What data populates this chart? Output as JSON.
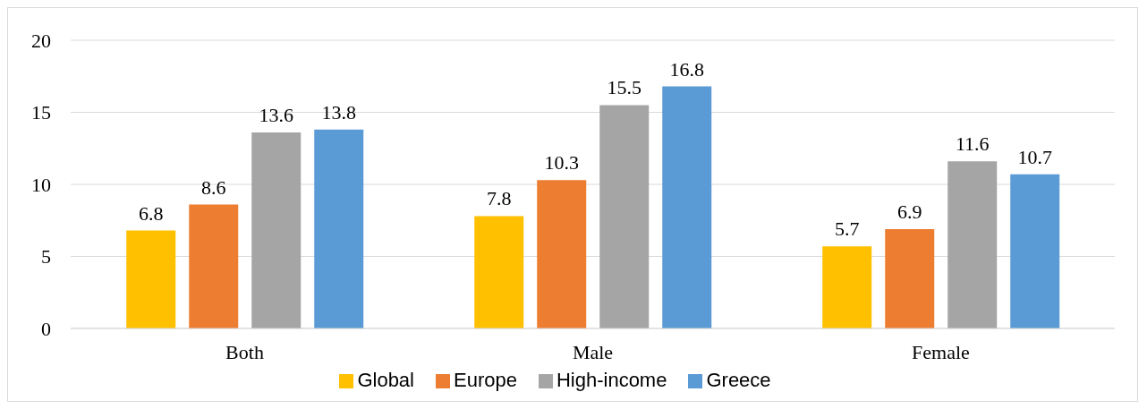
{
  "chart_data": {
    "type": "bar",
    "categories": [
      "Both",
      "Male",
      "Female"
    ],
    "series": [
      {
        "name": "Global",
        "color": "#ffc000",
        "values": [
          6.8,
          7.8,
          5.7
        ]
      },
      {
        "name": "Europe",
        "color": "#ed7d31",
        "values": [
          8.6,
          10.3,
          6.9
        ]
      },
      {
        "name": "High-income",
        "color": "#a5a5a5",
        "values": [
          13.6,
          15.5,
          11.6
        ]
      },
      {
        "name": "Greece",
        "color": "#5b9bd5",
        "values": [
          13.8,
          16.8,
          10.7
        ]
      }
    ],
    "ylim": [
      0,
      20
    ],
    "yticks": [
      0,
      5,
      10,
      15,
      20
    ],
    "grid": "y",
    "legend": "bottom",
    "data_labels": true
  }
}
